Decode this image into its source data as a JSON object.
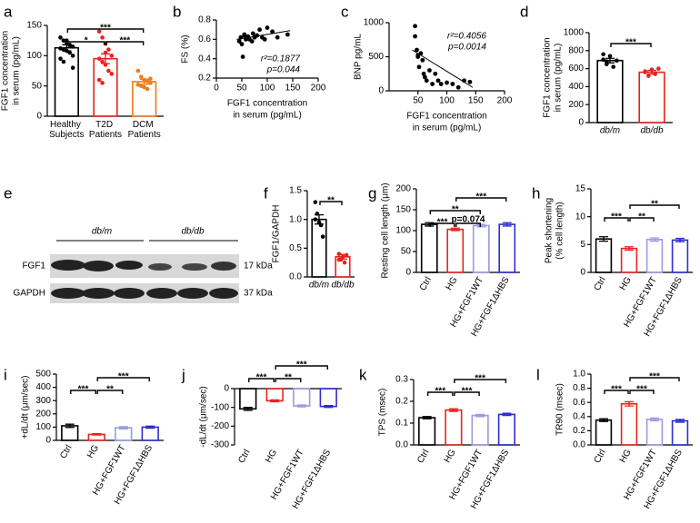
{
  "chart_data": [
    {
      "panel": "a",
      "type": "bar",
      "ylabel": [
        "FGF1 concentration",
        "in serum  (pg/mL)"
      ],
      "categories": [
        "Healthy Subjects",
        "T2D Patients",
        "DCM Patients"
      ],
      "values": [
        113,
        95,
        57
      ],
      "errors": [
        5,
        8,
        4
      ],
      "colors": [
        "#000000",
        "#e8231e",
        "#ef7d1a"
      ],
      "points": [
        [
          130,
          125,
          120,
          118,
          115,
          112,
          110,
          108,
          105,
          100,
          95,
          90,
          125,
          117,
          80
        ],
        [
          140,
          130,
          120,
          110,
          100,
          95,
          90,
          85,
          75,
          70,
          60,
          55,
          105
        ],
        [
          75,
          65,
          60,
          58,
          55,
          52,
          50,
          48,
          45,
          62
        ]
      ],
      "ylim": [
        0,
        150
      ],
      "yticks": [
        0,
        50,
        100,
        150
      ],
      "significance": [
        {
          "label": "*",
          "pair": [
            "Healthy Subjects",
            "T2D Patients"
          ]
        },
        {
          "label": "***",
          "pair": [
            "T2D Patients",
            "DCM Patients"
          ]
        },
        {
          "label": "***",
          "pair": [
            "Healthy Subjects",
            "DCM Patients"
          ]
        }
      ]
    },
    {
      "panel": "b",
      "type": "scatter",
      "ylabel": [
        "FS (%)"
      ],
      "xlabel": [
        "FGF1 concentration",
        "in serum  (pg/mL)"
      ],
      "x": [
        45,
        48,
        50,
        52,
        55,
        58,
        60,
        62,
        65,
        70,
        72,
        75,
        80,
        85,
        90,
        95,
        100,
        110,
        120,
        140,
        55
      ],
      "y": [
        0.58,
        0.62,
        0.55,
        0.42,
        0.65,
        0.6,
        0.62,
        0.63,
        0.6,
        0.58,
        0.66,
        0.62,
        0.64,
        0.7,
        0.62,
        0.6,
        0.72,
        0.68,
        0.62,
        0.65,
        0.64
      ],
      "fit": {
        "x": [
          40,
          145
        ],
        "y": [
          0.6,
          0.69
        ]
      },
      "xlim": [
        0,
        200
      ],
      "xticks": [
        0,
        50,
        100,
        150,
        200
      ],
      "ylim": [
        0.2,
        0.8
      ],
      "yticks": [
        0.2,
        0.4,
        0.6,
        0.8
      ],
      "annotations": [
        "r²=0.1877",
        "p=0.044"
      ]
    },
    {
      "panel": "c",
      "type": "scatter",
      "ylabel": [
        "BNP pg/mL"
      ],
      "xlabel": [
        "FGF1 concentration",
        "in serum  (pg/mL)"
      ],
      "x": [
        45,
        48,
        50,
        52,
        55,
        58,
        60,
        62,
        65,
        70,
        75,
        80,
        85,
        90,
        100,
        110,
        120,
        130,
        45,
        50,
        140
      ],
      "y": [
        950,
        600,
        500,
        350,
        550,
        450,
        250,
        200,
        150,
        300,
        100,
        250,
        150,
        100,
        120,
        100,
        50,
        150,
        800,
        520,
        130
      ],
      "fit": {
        "x": [
          40,
          145
        ],
        "y": [
          600,
          50
        ]
      },
      "xlim": [
        0,
        200
      ],
      "xticks": [
        50,
        100,
        150,
        200
      ],
      "ylim": [
        0,
        1000
      ],
      "yticks": [
        0,
        500,
        1000
      ],
      "annotations": [
        "r²=0.4056",
        "p=0.0014"
      ]
    },
    {
      "panel": "d",
      "type": "bar",
      "ylabel": [
        "FGF1 concentration",
        "in serum  (pg/mL)"
      ],
      "categories": [
        "db/m",
        "db/db"
      ],
      "values": [
        690,
        560
      ],
      "errors": [
        25,
        20
      ],
      "colors": [
        "#000000",
        "#e8231e"
      ],
      "italic_categories": true,
      "points": [
        [
          700,
          650,
          740,
          620,
          690,
          760,
          680
        ],
        [
          560,
          520,
          590,
          540,
          600,
          570
        ]
      ],
      "ylim": [
        0,
        1000
      ],
      "yticks": [
        0,
        200,
        400,
        600,
        800,
        1000
      ],
      "significance": [
        {
          "label": "***",
          "pair": [
            "db/m",
            "db/db"
          ]
        }
      ]
    },
    {
      "panel": "f",
      "type": "bar",
      "ylabel": [
        "FGF1/GAPDH"
      ],
      "categories": [
        "db/m",
        "db/db"
      ],
      "values": [
        1.0,
        0.35
      ],
      "errors": [
        0.08,
        0.04
      ],
      "colors": [
        "#000000",
        "#e8231e"
      ],
      "italic_categories": true,
      "points": [
        [
          1.3,
          1.1,
          0.95,
          0.9,
          0.7,
          1.0
        ],
        [
          0.4,
          0.3,
          0.35,
          0.25,
          0.38,
          0.3
        ]
      ],
      "ylim": [
        0,
        1.5
      ],
      "yticks": [
        {
          "value": 0,
          "label": "0.0"
        },
        0.5,
        {
          "value": 1,
          "label": "1.0"
        },
        1.5
      ],
      "significance": [
        {
          "label": "**",
          "pair": [
            "db/m",
            "db/db"
          ]
        }
      ]
    },
    {
      "panel": "g",
      "type": "bar",
      "ylabel": [
        "Resting cell length (μm)"
      ],
      "categories": [
        "Ctrl",
        "HG",
        "HG+FGF1WT",
        "HG+FGF1ΔHBS"
      ],
      "values": [
        115,
        103,
        112,
        115
      ],
      "errors": [
        4,
        3,
        3,
        4
      ],
      "colors": [
        "#000000",
        "#e8231e",
        "#9a9ae6",
        "#2d2dd0"
      ],
      "ylim": [
        0,
        200
      ],
      "yticks": [
        0,
        50,
        100,
        150,
        200
      ],
      "significance": [
        {
          "label": "***",
          "pair": [
            "Ctrl",
            "HG"
          ]
        },
        {
          "label": "p=0.074",
          "pair": [
            "HG",
            "HG+FGF1WT"
          ]
        },
        {
          "label": "**",
          "pair": [
            "Ctrl",
            "HG+FGF1WT"
          ]
        },
        {
          "label": "***",
          "pair": [
            "HG",
            "HG+FGF1ΔHBS"
          ]
        }
      ]
    },
    {
      "panel": "h",
      "type": "bar",
      "ylabel": [
        "Peak shortening",
        "(% cell length)"
      ],
      "categories": [
        "Ctrl",
        "HG",
        "HG+FGF1WT",
        "HG+FGF1ΔHBS"
      ],
      "values": [
        6.0,
        4.3,
        5.9,
        5.8
      ],
      "errors": [
        0.4,
        0.3,
        0.3,
        0.3
      ],
      "colors": [
        "#000000",
        "#e8231e",
        "#9a9ae6",
        "#2d2dd0"
      ],
      "ylim": [
        0,
        15
      ],
      "yticks": [
        0,
        5,
        10,
        15
      ],
      "significance": [
        {
          "label": "***",
          "pair": [
            "Ctrl",
            "HG"
          ]
        },
        {
          "label": "**",
          "pair": [
            "HG",
            "HG+FGF1WT"
          ]
        },
        {
          "label": "**",
          "pair": [
            "HG",
            "HG+FGF1ΔHBS"
          ]
        }
      ]
    },
    {
      "panel": "i",
      "type": "bar",
      "ylabel": [
        "+dL/dt (μm/sec)"
      ],
      "categories": [
        "Ctrl",
        "HG",
        "HG+FGF1WT",
        "HG+FGF1ΔHBS"
      ],
      "values": [
        110,
        45,
        95,
        100
      ],
      "errors": [
        12,
        5,
        8,
        8
      ],
      "colors": [
        "#000000",
        "#e8231e",
        "#9a9ae6",
        "#2d2dd0"
      ],
      "ylim": [
        0,
        500
      ],
      "yticks": [
        0,
        100,
        200,
        300,
        400,
        500
      ],
      "significance": [
        {
          "label": "***",
          "pair": [
            "Ctrl",
            "HG"
          ]
        },
        {
          "label": "**",
          "pair": [
            "HG",
            "HG+FGF1WT"
          ]
        },
        {
          "label": "***",
          "pair": [
            "HG",
            "HG+FGF1ΔHBS"
          ]
        }
      ]
    },
    {
      "panel": "j",
      "type": "bar",
      "ylabel": [
        "-dL/dt (μm/sec)"
      ],
      "categories": [
        "Ctrl",
        "HG",
        "HG+FGF1WT",
        "HG+FGF1ΔHBS"
      ],
      "values": [
        -108,
        -65,
        -92,
        -95
      ],
      "errors": [
        8,
        5,
        5,
        5
      ],
      "colors": [
        "#000000",
        "#e8231e",
        "#9a9ae6",
        "#2d2dd0"
      ],
      "ylim": [
        -300,
        0
      ],
      "yticks": [
        -300,
        -200,
        -100,
        0
      ],
      "significance": [
        {
          "label": "***",
          "pair": [
            "Ctrl",
            "HG"
          ]
        },
        {
          "label": "**",
          "pair": [
            "HG",
            "HG+FGF1WT"
          ]
        },
        {
          "label": "***",
          "pair": [
            "HG",
            "HG+FGF1ΔHBS"
          ]
        }
      ]
    },
    {
      "panel": "k",
      "type": "bar",
      "ylabel": [
        "TPS (msec)"
      ],
      "categories": [
        "Ctrl",
        "HG",
        "HG+FGF1WT",
        "HG+FGF1ΔHBS"
      ],
      "values": [
        0.125,
        0.16,
        0.135,
        0.14
      ],
      "errors": [
        0.005,
        0.006,
        0.005,
        0.005
      ],
      "colors": [
        "#000000",
        "#e8231e",
        "#9a9ae6",
        "#2d2dd0"
      ],
      "ylim": [
        0,
        0.3
      ],
      "yticks": [
        {
          "value": 0,
          "label": "0.0"
        },
        0.1,
        0.2,
        0.3
      ],
      "significance": [
        {
          "label": "***",
          "pair": [
            "Ctrl",
            "HG"
          ]
        },
        {
          "label": "***",
          "pair": [
            "HG",
            "HG+FGF1WT"
          ]
        },
        {
          "label": "***",
          "pair": [
            "HG",
            "HG+FGF1ΔHBS"
          ]
        }
      ]
    },
    {
      "panel": "l",
      "type": "bar",
      "ylabel": [
        "TR90 (msec)"
      ],
      "categories": [
        "Ctrl",
        "HG",
        "HG+FGF1WT",
        "HG+FGF1ΔHBS"
      ],
      "values": [
        0.35,
        0.58,
        0.36,
        0.34
      ],
      "errors": [
        0.02,
        0.03,
        0.02,
        0.02
      ],
      "colors": [
        "#000000",
        "#e8231e",
        "#9a9ae6",
        "#2d2dd0"
      ],
      "ylim": [
        0,
        1.0
      ],
      "yticks": [
        {
          "value": 0,
          "label": "0.0"
        },
        0.2,
        0.4,
        0.6,
        0.8,
        {
          "value": 1,
          "label": "1.0"
        }
      ],
      "significance": [
        {
          "label": "***",
          "pair": [
            "Ctrl",
            "HG"
          ]
        },
        {
          "label": "***",
          "pair": [
            "HG",
            "HG+FGF1WT"
          ]
        },
        {
          "label": "***",
          "pair": [
            "HG",
            "HG+FGF1ΔHBS"
          ]
        }
      ]
    }
  ],
  "blot": {
    "panel": "e",
    "groups": [
      "db/m",
      "db/db"
    ],
    "rows": [
      {
        "name": "FGF1",
        "size": "17 kDa"
      },
      {
        "name": "GAPDH",
        "size": "37 kDa"
      }
    ]
  }
}
